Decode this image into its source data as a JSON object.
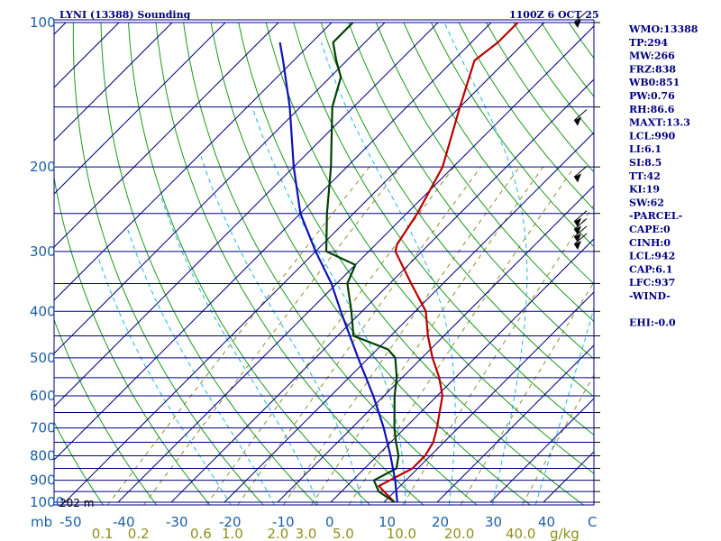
{
  "header": {
    "station_title": "LYNI (13388) Sounding",
    "valid_time": "1100Z  6 OCT 25"
  },
  "surface_label": "202 m",
  "indices": [
    "WMO:13388",
    "TP:294",
    "MW:266",
    "FRZ:838",
    "WB0:851",
    "PW:0.76",
    "RH:86.6",
    "MAXT:13.3",
    "LCL:990",
    "LI:6.1",
    "SI:8.5",
    "TT:42",
    "KI:19",
    "SW:62",
    "-PARCEL-",
    "CAPE:0",
    "CINH:0",
    "LCL:942",
    "CAP:6.1",
    "LFC:937",
    "-WIND-",
    "",
    "EHI:-0.0"
  ],
  "chart_data": {
    "type": "line",
    "chart_kind": "skew-T log-P",
    "title": "LYNI (13388) Sounding",
    "y_axis": {
      "scale": "log",
      "unit_label": "mb",
      "ylim": [
        1000,
        100
      ],
      "tick_labels": [
        "100",
        "200",
        "300",
        "400",
        "500",
        "600",
        "700",
        "800",
        "900",
        "1000"
      ],
      "isobars": [
        100,
        150,
        200,
        250,
        300,
        350,
        400,
        450,
        500,
        550,
        600,
        650,
        700,
        750,
        800,
        850,
        900,
        950,
        1000
      ]
    },
    "x_axis": {
      "unit_label": "C",
      "tick_labels": [
        "-50",
        "-40",
        "-30",
        "-20",
        "-10",
        "0",
        "10",
        "20",
        "30",
        "40"
      ],
      "mixing_ratio_unit": "g/kg",
      "mixing_ratio_labels": [
        "0.1",
        "0.2",
        "0.6",
        "1.0",
        "2.0",
        "3.0",
        "5.0",
        "10.0",
        "20.0",
        "40.0"
      ]
    },
    "series": [
      {
        "role": "temperature",
        "color": "#bb0000",
        "points": [
          [
            1000,
            12
          ],
          [
            950,
            8
          ],
          [
            925,
            6
          ],
          [
            900,
            7
          ],
          [
            850,
            9
          ],
          [
            800,
            9
          ],
          [
            750,
            8
          ],
          [
            700,
            6
          ],
          [
            600,
            1
          ],
          [
            550,
            -3
          ],
          [
            500,
            -8
          ],
          [
            450,
            -13
          ],
          [
            400,
            -18
          ],
          [
            350,
            -26
          ],
          [
            300,
            -35
          ],
          [
            290,
            -36
          ],
          [
            250,
            -38
          ],
          [
            200,
            -42
          ],
          [
            150,
            -50
          ],
          [
            120,
            -56
          ],
          [
            110,
            -55
          ],
          [
            100,
            -55
          ]
        ]
      },
      {
        "role": "dewpoint",
        "color": "#004000",
        "points": [
          [
            1000,
            12
          ],
          [
            950,
            7
          ],
          [
            900,
            4
          ],
          [
            850,
            6
          ],
          [
            800,
            4
          ],
          [
            750,
            1
          ],
          [
            700,
            -2
          ],
          [
            600,
            -8
          ],
          [
            550,
            -11
          ],
          [
            500,
            -15
          ],
          [
            480,
            -18
          ],
          [
            450,
            -27
          ],
          [
            400,
            -32
          ],
          [
            350,
            -38
          ],
          [
            320,
            -40
          ],
          [
            300,
            -48
          ],
          [
            250,
            -55
          ],
          [
            200,
            -63
          ],
          [
            150,
            -74
          ],
          [
            130,
            -78
          ],
          [
            120,
            -82
          ],
          [
            110,
            -86
          ],
          [
            100,
            -86
          ]
        ]
      },
      {
        "role": "parcel",
        "color": "#1010b8",
        "points": [
          [
            1000,
            12.5
          ],
          [
            900,
            8
          ],
          [
            800,
            2.5
          ],
          [
            700,
            -4
          ],
          [
            600,
            -12
          ],
          [
            500,
            -22
          ],
          [
            400,
            -34
          ],
          [
            350,
            -41
          ],
          [
            300,
            -50
          ],
          [
            250,
            -60
          ],
          [
            200,
            -70
          ],
          [
            150,
            -82
          ],
          [
            120,
            -92
          ],
          [
            110,
            -96
          ]
        ]
      }
    ],
    "wind_barbs_levels_mb": [
      100,
      160,
      210,
      260,
      270,
      280,
      290
    ],
    "colors": {
      "isobar": "#000080",
      "isotherm": "#000080",
      "dry_adiabat": "#1a9a1a",
      "moist_adiabat": "#1ab8e0",
      "mixing_ratio": "#8f8f2f",
      "text": "#000080"
    }
  }
}
